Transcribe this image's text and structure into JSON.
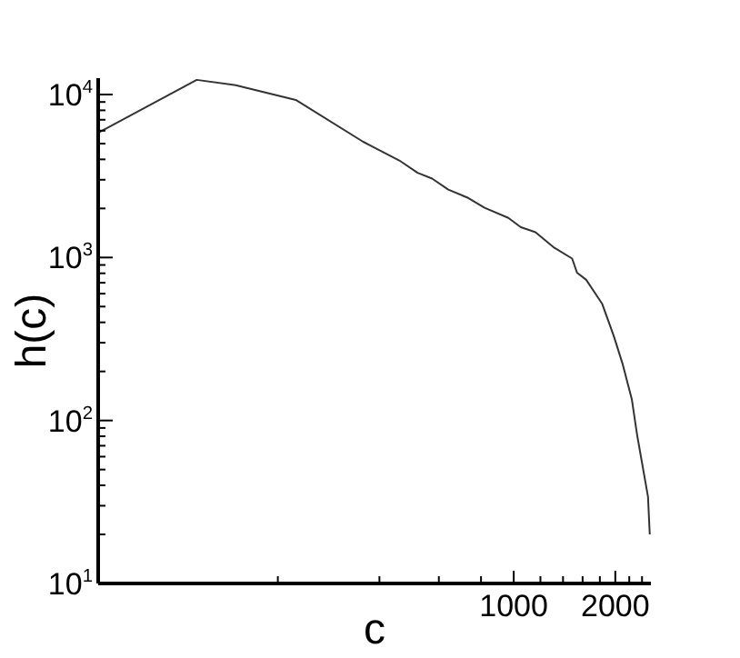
{
  "chart_data": {
    "type": "line",
    "xlabel": "c",
    "ylabel": "h(c)",
    "log": "xy",
    "grid": false,
    "legend": false,
    "marker": "none",
    "line_style": "solid",
    "x": [
      58.7,
      115,
      150,
      226,
      358,
      376,
      458,
      519,
      573,
      640,
      733,
      820,
      964,
      1050,
      1160,
      1310,
      1490,
      1540,
      1640,
      1830,
      1980,
      2100,
      2240,
      2320,
      2500,
      2530
    ],
    "series": [
      {
        "color": "#333333",
        "values": [
          5830,
          12300,
          11400,
          9270,
          5130,
          4870,
          3940,
          3310,
          3050,
          2610,
          2320,
          2020,
          1750,
          1535,
          1430,
          1160,
          985,
          807,
          730,
          518,
          329,
          224,
          134,
          82,
          34,
          20
        ]
      }
    ],
    "xlim": [
      58.7,
      2550
    ],
    "xticks": [
      {
        "value": 200,
        "label": null
      },
      {
        "value": 400,
        "label": null
      },
      {
        "value": 600,
        "label": null
      },
      {
        "value": 800,
        "label": null
      },
      1000,
      {
        "value": 1200,
        "label": null
      },
      {
        "value": 1400,
        "label": null
      },
      {
        "value": 1600,
        "label": null
      },
      {
        "value": 1800,
        "label": null
      },
      2000,
      {
        "value": 2200,
        "label": null
      },
      {
        "value": 2400,
        "label": null
      }
    ],
    "ylim": [
      10,
      12600
    ],
    "yticks": [
      {
        "value": 10,
        "label": "10$^{1}$"
      },
      {
        "value": 20,
        "label": null
      },
      {
        "value": 30,
        "label": null
      },
      {
        "value": 40,
        "label": null
      },
      {
        "value": 50,
        "label": null
      },
      {
        "value": 60,
        "label": null
      },
      {
        "value": 70,
        "label": null
      },
      {
        "value": 80,
        "label": null
      },
      {
        "value": 90,
        "label": null
      },
      {
        "value": 100,
        "label": "10$^{2}$"
      },
      {
        "value": 200,
        "label": null
      },
      {
        "value": 300,
        "label": null
      },
      {
        "value": 400,
        "label": null
      },
      {
        "value": 500,
        "label": null
      },
      {
        "value": 600,
        "label": null
      },
      {
        "value": 700,
        "label": null
      },
      {
        "value": 800,
        "label": null
      },
      {
        "value": 900,
        "label": null
      },
      {
        "value": 1000,
        "label": "10$^{3}$"
      },
      {
        "value": 2000,
        "label": null
      },
      {
        "value": 3000,
        "label": null
      },
      {
        "value": 4000,
        "label": null
      },
      {
        "value": 5000,
        "label": null
      },
      {
        "value": 6000,
        "label": null
      },
      {
        "value": 7000,
        "label": null
      },
      {
        "value": 8000,
        "label": null
      },
      {
        "value": 9000,
        "label": null
      },
      {
        "value": 10000,
        "label": "10$^{4}$"
      }
    ]
  }
}
